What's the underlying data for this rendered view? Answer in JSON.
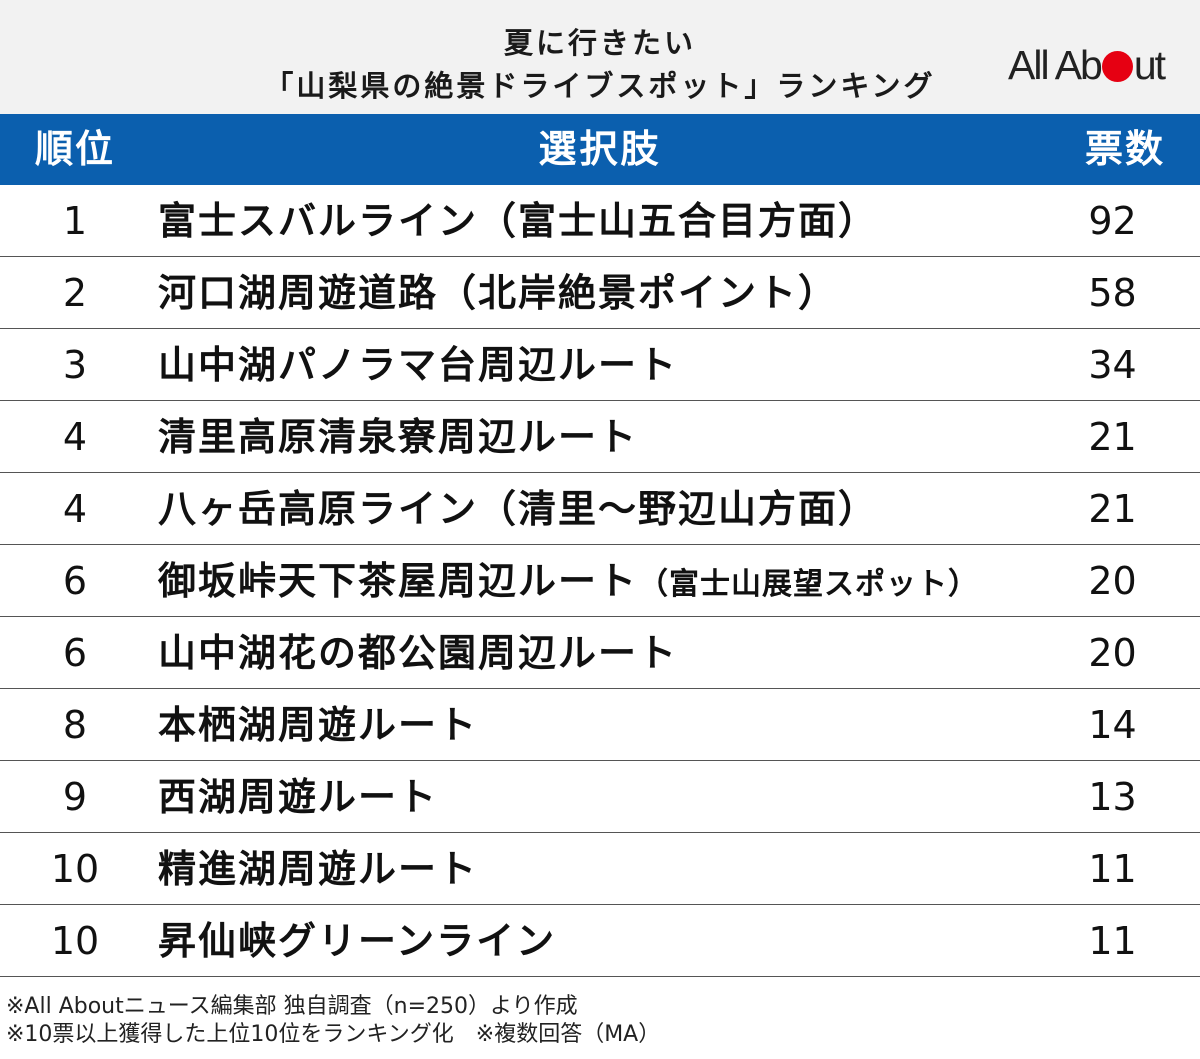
{
  "header": {
    "title_line1": "夏に行きたい",
    "title_line2": "「山梨県の絶景ドライブスポット」ランキング",
    "logo_prefix": "All Ab",
    "logo_suffix": "ut",
    "accent_color": "#e60012"
  },
  "chart_data": {
    "type": "table",
    "columns": [
      "順位",
      "選択肢",
      "票数"
    ],
    "rows": [
      {
        "rank": "1",
        "name": "富士スバルライン（富士山五合目方面）",
        "name_note": "",
        "votes": 92
      },
      {
        "rank": "2",
        "name": "河口湖周遊道路（北岸絶景ポイント）",
        "name_note": "",
        "votes": 58
      },
      {
        "rank": "3",
        "name": "山中湖パノラマ台周辺ルート",
        "name_note": "",
        "votes": 34
      },
      {
        "rank": "4",
        "name": "清里高原清泉寮周辺ルート",
        "name_note": "",
        "votes": 21
      },
      {
        "rank": "4",
        "name": "八ヶ岳高原ライン（清里〜野辺山方面）",
        "name_note": "",
        "votes": 21
      },
      {
        "rank": "6",
        "name": "御坂峠天下茶屋周辺ルート",
        "name_note": "（富士山展望スポット）",
        "votes": 20
      },
      {
        "rank": "6",
        "name": "山中湖花の都公園周辺ルート",
        "name_note": "",
        "votes": 20
      },
      {
        "rank": "8",
        "name": "本栖湖周遊ルート",
        "name_note": "",
        "votes": 14
      },
      {
        "rank": "9",
        "name": "西湖周遊ルート",
        "name_note": "",
        "votes": 13
      },
      {
        "rank": "10",
        "name": "精進湖周遊ルート",
        "name_note": "",
        "votes": 11
      },
      {
        "rank": "10",
        "name": "昇仙峡グリーンライン",
        "name_note": "",
        "votes": 11
      }
    ],
    "header_color": "#0b5fae"
  },
  "footer": {
    "note1": "※All Aboutニュース編集部 独自調査（n=250）より作成",
    "note2": "※10票以上獲得した上位10位をランキング化　※複数回答（MA）"
  }
}
